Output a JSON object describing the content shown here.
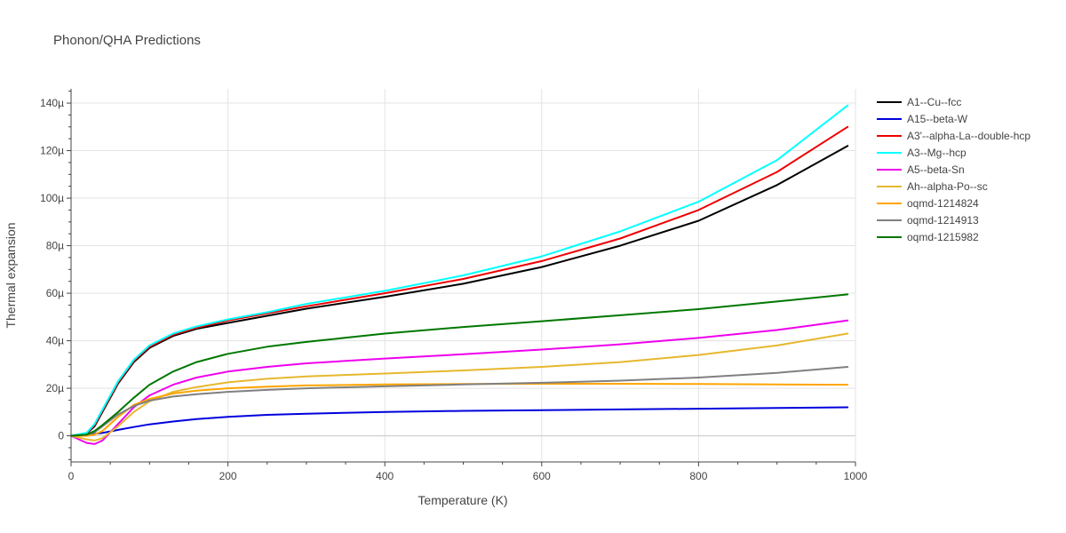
{
  "chart_data": {
    "type": "line",
    "title": "Phonon/QHA Predictions",
    "xlabel": "Temperature (K)",
    "ylabel": "Thermal expansion",
    "xlim": [
      0,
      1000
    ],
    "ylim": [
      -11,
      146
    ],
    "y_unit_suffix": "µ",
    "x_ticks": [
      0,
      200,
      400,
      600,
      800,
      1000
    ],
    "x_tick_labels": [
      "0",
      "200",
      "400",
      "600",
      "800",
      "1000"
    ],
    "y_ticks": [
      0,
      20,
      40,
      60,
      80,
      100,
      120,
      140
    ],
    "y_tick_labels": [
      "0",
      "20µ",
      "40µ",
      "60µ",
      "80µ",
      "100µ",
      "120µ",
      "140µ"
    ],
    "grid": true,
    "legend_position": "right",
    "x": [
      0,
      20,
      30,
      40,
      60,
      80,
      100,
      130,
      160,
      200,
      250,
      300,
      400,
      500,
      600,
      700,
      800,
      900,
      990
    ],
    "series": [
      {
        "name": "A1--Cu--fcc",
        "color": "#000000",
        "values": [
          0,
          1,
          4,
          10,
          22,
          31,
          37,
          42,
          45,
          47.5,
          50.5,
          53.5,
          58.5,
          64,
          71,
          80,
          90.5,
          105.5,
          122
        ]
      },
      {
        "name": "A15--beta-W",
        "color": "#0000dd",
        "values": [
          0,
          0.5,
          0.8,
          1.2,
          2.5,
          3.7,
          4.8,
          6,
          7,
          8,
          8.8,
          9.3,
          10,
          10.5,
          10.8,
          11.1,
          11.4,
          11.7,
          12
        ]
      },
      {
        "name": "A3'--alpha-La--double-hcp",
        "color": "#ee0000",
        "values": [
          0,
          1.2,
          4.5,
          10.5,
          22.5,
          31.5,
          37.5,
          42.5,
          45.5,
          48.5,
          51.5,
          54.5,
          60,
          66,
          73.5,
          83,
          95,
          111,
          130
        ]
      },
      {
        "name": "A3--Mg--hcp",
        "color": "#00ffff",
        "values": [
          0,
          1.3,
          5,
          11,
          23,
          32,
          38,
          43,
          46,
          49,
          52,
          55.5,
          61,
          67.5,
          75.5,
          86,
          98.5,
          116,
          139
        ]
      },
      {
        "name": "A5--beta-Sn",
        "color": "#ee00ee",
        "values": [
          0,
          -3,
          -3.5,
          -2,
          5,
          12,
          17,
          21.5,
          24.5,
          27,
          29,
          30.5,
          32.5,
          34.3,
          36.3,
          38.5,
          41.2,
          44.5,
          48.5
        ]
      },
      {
        "name": "Ah--alpha-Po--sc",
        "color": "#e6b82e",
        "values": [
          0,
          -1.5,
          -2,
          -1,
          4,
          10,
          14.5,
          18.5,
          20.5,
          22.5,
          24,
          25,
          26.2,
          27.5,
          29,
          31,
          34,
          38,
          43
        ]
      },
      {
        "name": "oqmd-1214824",
        "color": "#ffa500",
        "values": [
          0,
          0,
          0.5,
          2,
          8,
          13,
          15.5,
          17.8,
          19,
          20,
          20.7,
          21.2,
          21.6,
          21.8,
          21.9,
          21.9,
          21.8,
          21.6,
          21.5
        ]
      },
      {
        "name": "oqmd-1214913",
        "color": "#808080",
        "values": [
          0,
          0.5,
          1.5,
          4,
          9,
          12.5,
          14.8,
          16.5,
          17.5,
          18.5,
          19.3,
          20,
          20.8,
          21.6,
          22.3,
          23.2,
          24.5,
          26.5,
          29
        ]
      },
      {
        "name": "oqmd-1215982",
        "color": "#007700",
        "values": [
          0,
          0.5,
          2,
          4.5,
          10,
          16,
          21.5,
          27,
          31,
          34.5,
          37.5,
          39.5,
          43,
          45.8,
          48.2,
          50.7,
          53.3,
          56.5,
          59.5
        ]
      }
    ]
  }
}
